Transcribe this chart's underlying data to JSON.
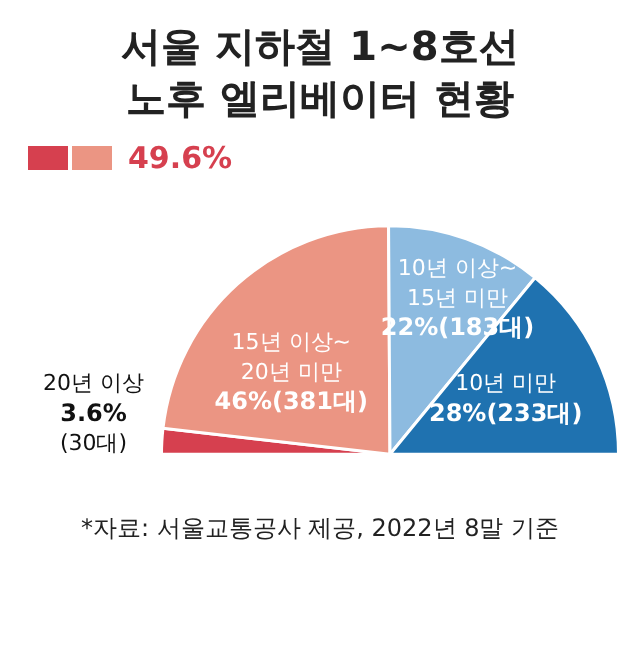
{
  "chart_data": {
    "type": "pie",
    "title": "서울 지하철 1~8호선\n노후 엘리베이터 현황",
    "categories": [
      "20년 이상",
      "15년 이상~\n20년 미만",
      "10년 이상~\n15년 미만",
      "10년 미만"
    ],
    "values": [
      3.6,
      46,
      22,
      28
    ],
    "colors": [
      "#d6404f",
      "#eb9583",
      "#8dbbe0",
      "#1f72b0"
    ],
    "value_labels": [
      "3.6%\n(30대)",
      "46%(381대)",
      "22%(183대)",
      "28%(233대)"
    ],
    "annotations": [
      "49.6%",
      "*자료: 서울교통공사 제공, 2022년 8말 기준"
    ]
  }
}
